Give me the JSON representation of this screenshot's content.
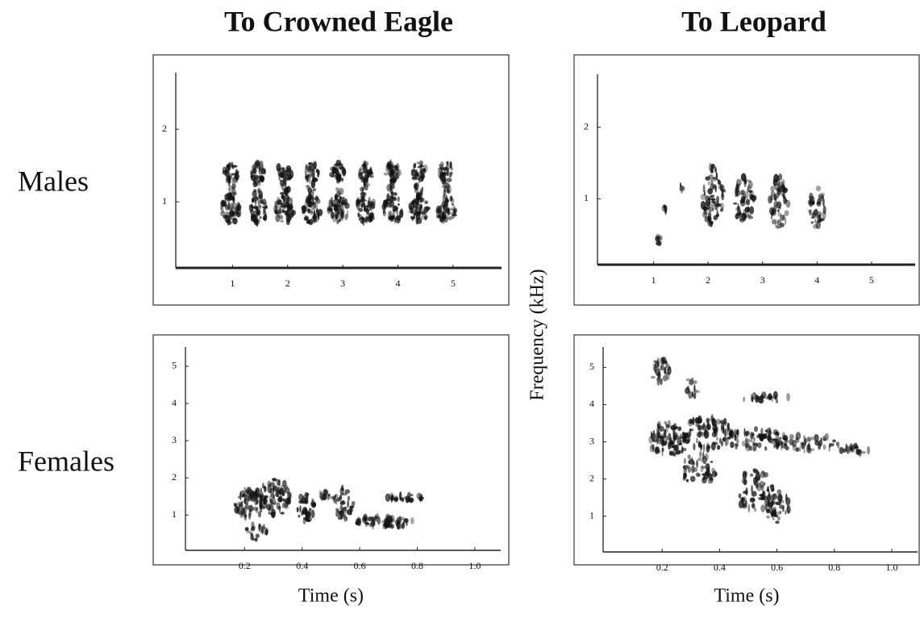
{
  "figure": {
    "column_titles": [
      "To Crowned Eagle",
      "To Leopard"
    ],
    "row_labels": [
      "Males",
      "Females"
    ],
    "ylabel": "Frequency (kHz)"
  },
  "chart_data": [
    {
      "type": "spectrogram",
      "xlim": [
        0,
        5.88
      ],
      "xticks": [
        1,
        2,
        3,
        4,
        5
      ],
      "ylim": [
        0.09,
        2.78
      ],
      "yticks": [
        1,
        2
      ]
    },
    {
      "type": "spectrogram",
      "xlim": [
        0,
        5.8
      ],
      "xticks": [
        1,
        2,
        3,
        4,
        5
      ],
      "ylim": [
        0.08,
        2.74
      ],
      "yticks": [
        1,
        2
      ]
    },
    {
      "type": "spectrogram",
      "xlabel": "Time (s)",
      "xlim": [
        0,
        1.09
      ],
      "xticks": [
        0.2,
        0.4,
        0.6,
        0.8,
        {
          "value": 1,
          "label": "1.0"
        }
      ],
      "ylim": [
        0.05,
        5.52
      ],
      "yticks": [
        1,
        2,
        3,
        4,
        5
      ]
    },
    {
      "type": "spectrogram",
      "xlabel": "Time (s)",
      "xlim": [
        0,
        1.09
      ],
      "xticks": [
        0.2,
        0.4,
        0.6,
        0.8,
        {
          "value": 1,
          "label": "1.0"
        }
      ],
      "ylim": [
        0.04,
        5.55
      ],
      "yticks": [
        1,
        2,
        3,
        4,
        5
      ]
    }
  ]
}
